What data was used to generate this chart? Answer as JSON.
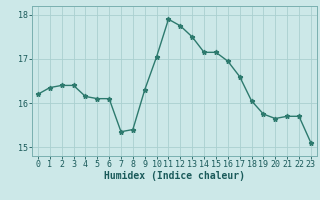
{
  "x": [
    0,
    1,
    2,
    3,
    4,
    5,
    6,
    7,
    8,
    9,
    10,
    11,
    12,
    13,
    14,
    15,
    16,
    17,
    18,
    19,
    20,
    21,
    22,
    23
  ],
  "y": [
    16.2,
    16.35,
    16.4,
    16.4,
    16.15,
    16.1,
    16.1,
    15.35,
    15.4,
    16.3,
    17.05,
    17.9,
    17.75,
    17.5,
    17.15,
    17.15,
    16.95,
    16.6,
    16.05,
    15.75,
    15.65,
    15.7,
    15.7,
    15.1
  ],
  "ylim": [
    14.8,
    18.2
  ],
  "yticks": [
    15,
    16,
    17,
    18
  ],
  "xticks": [
    0,
    1,
    2,
    3,
    4,
    5,
    6,
    7,
    8,
    9,
    10,
    11,
    12,
    13,
    14,
    15,
    16,
    17,
    18,
    19,
    20,
    21,
    22,
    23
  ],
  "xlabel": "Humidex (Indice chaleur)",
  "line_color": "#2d7a6e",
  "bg_color": "#cce8e8",
  "grid_color": "#aad0d0",
  "marker": "*",
  "marker_size": 3.5,
  "line_width": 1.0,
  "font_color": "#1a5a5a",
  "xlabel_fontsize": 7.0,
  "tick_fontsize": 6.0,
  "xlim": [
    -0.5,
    23.5
  ]
}
